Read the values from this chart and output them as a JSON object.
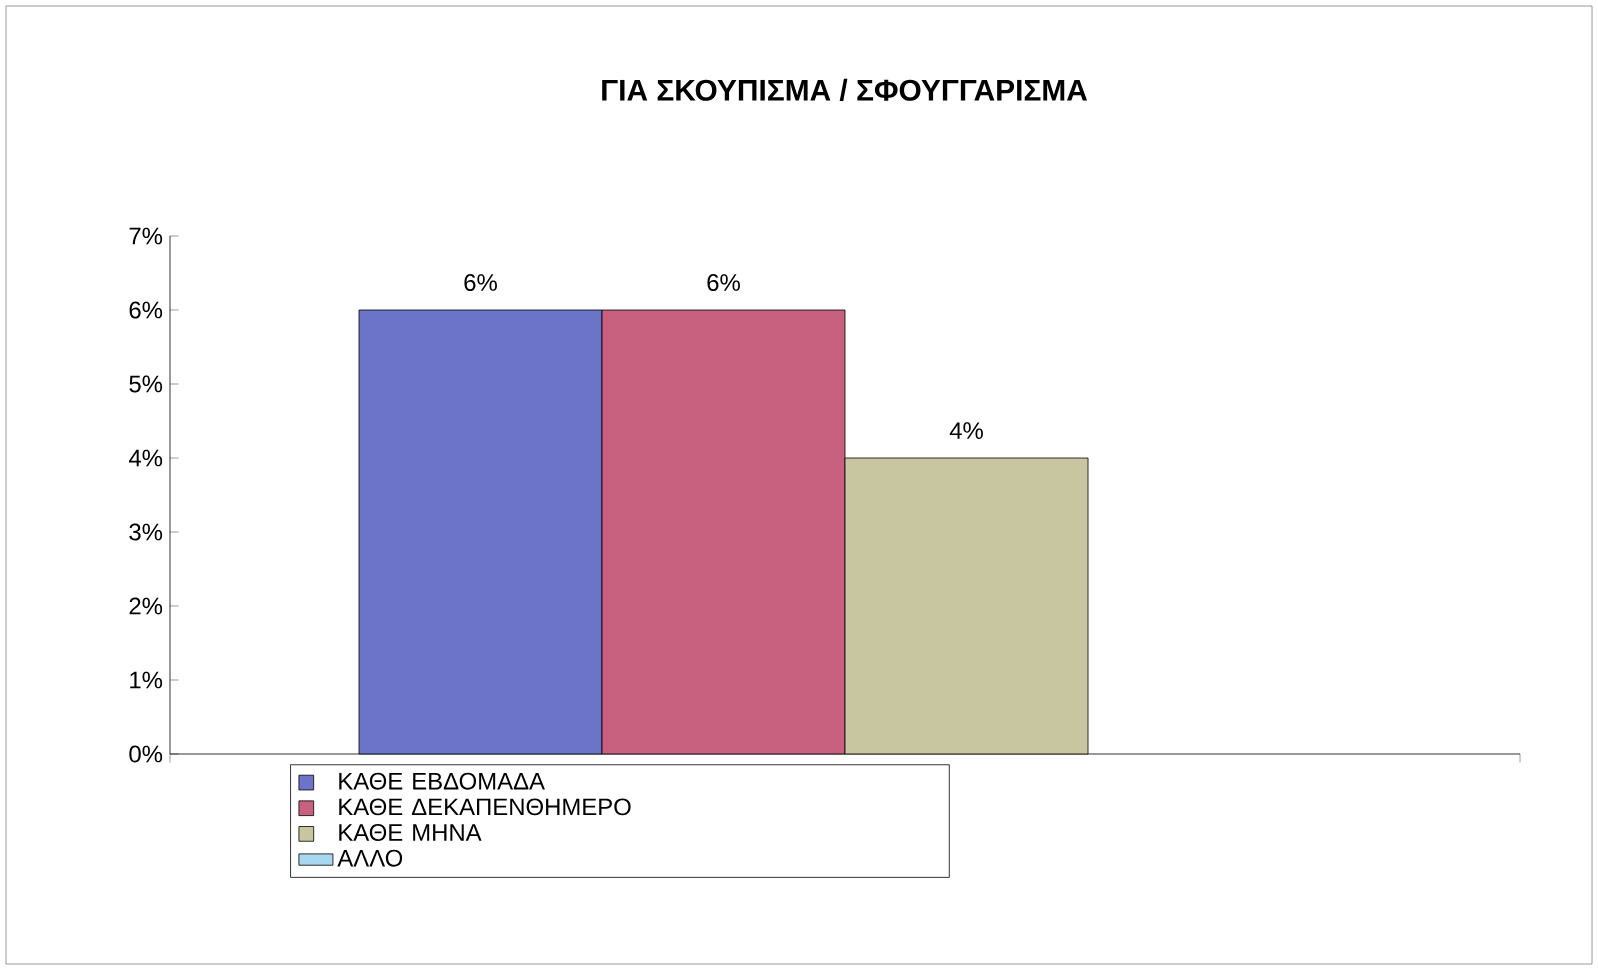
{
  "chart_data": {
    "type": "bar",
    "title": "ΓΙΑ ΣΚΟΥΠΙΣΜΑ / ΣΦΟΥΓΓΑΡΙΣΜΑ",
    "categories": [
      null
    ],
    "series": [
      {
        "name": "ΚΑΘΕ ΕΒΔΟΜΑΔΑ",
        "color": "#6b74c8",
        "values": [
          6
        ],
        "value_labels": [
          "6%"
        ]
      },
      {
        "name": "ΚΑΘΕ ΔΕΚΑΠΕΝΘΗΜΕΡΟ",
        "color": "#c8607f",
        "values": [
          6
        ],
        "value_labels": [
          "6%"
        ]
      },
      {
        "name": "ΚΑΘΕ ΜΗΝΑ",
        "color": "#c8c6a0",
        "values": [
          4
        ],
        "value_labels": [
          "4%"
        ]
      },
      {
        "name": "ΑΛΛΟ",
        "color": "#a8d8f0",
        "values": [
          null
        ],
        "value_labels": [
          null
        ]
      }
    ],
    "ylim": [
      0,
      7
    ],
    "yticks": [
      {
        "value": 0,
        "label": "0%"
      },
      {
        "value": 1,
        "label": "1%"
      },
      {
        "value": 2,
        "label": "2%"
      },
      {
        "value": 3,
        "label": "3%"
      },
      {
        "value": 4,
        "label": "4%"
      },
      {
        "value": 5,
        "label": "5%"
      },
      {
        "value": 6,
        "label": "6%"
      },
      {
        "value": 7,
        "label": "7%"
      }
    ],
    "tick_labels": "y",
    "grid": false,
    "legend": "bottom"
  }
}
